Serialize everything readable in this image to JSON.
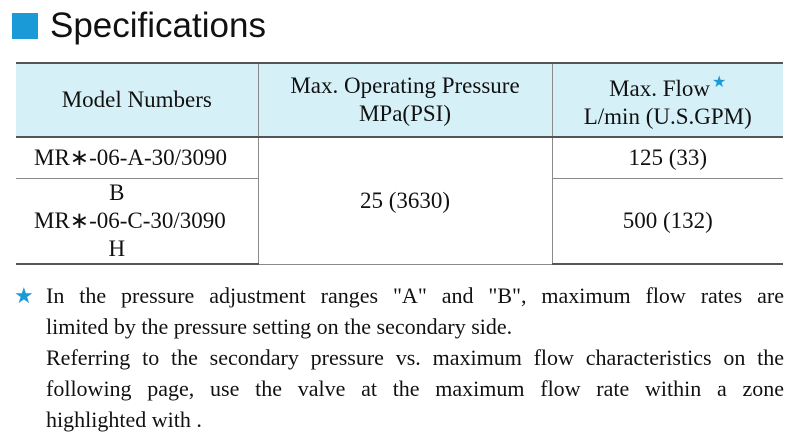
{
  "heading": {
    "title": "Specifications",
    "accent_color": "#1a9ad6"
  },
  "table": {
    "header_bg": "#d6f0f8",
    "columns": {
      "model": "Model Numbers",
      "pressure_line1": "Max. Operating Pressure",
      "pressure_line2": "MPa(PSI)",
      "flow_line1": "Max. Flow",
      "flow_mark": "★",
      "flow_line2": "L/min (U.S.GPM)"
    },
    "rows": [
      {
        "model": "MR∗-06-A-30/3090",
        "flow": "125 (33)"
      },
      {
        "model_top": "B",
        "model": "MR∗-06-C-30/3090",
        "model_bottom": "H",
        "flow": "500 (132)"
      }
    ],
    "pressure": "25 (3630)"
  },
  "note": {
    "marker": "★",
    "line1": "In the pressure adjustment ranges \"A\" and \"B\", maximum flow rates are",
    "line2": "limited by the pressure setting on the secondary side.",
    "line3": "Referring to the secondary pressure vs. maximum flow characteristics on the",
    "line4": "following page, use the valve at the maximum flow rate within a zone",
    "line5": "highlighted with  ."
  }
}
